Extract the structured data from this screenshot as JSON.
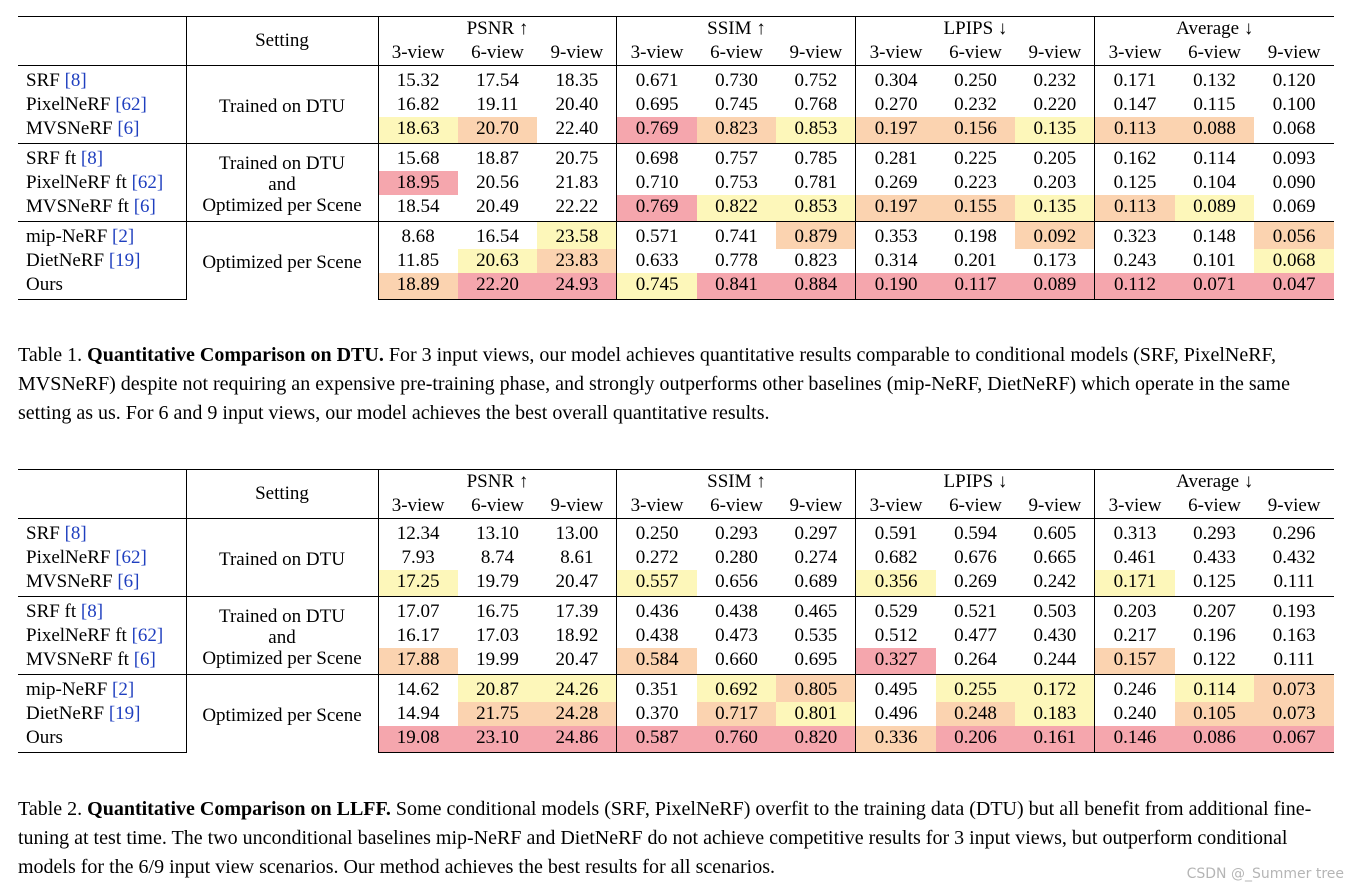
{
  "headers": {
    "setting": "Setting",
    "groups": [
      "PSNR ↑",
      "SSIM ↑",
      "LPIPS ↓",
      "Average ↓"
    ],
    "views": [
      "3-view",
      "6-view",
      "9-view"
    ]
  },
  "tables": [
    {
      "groups": [
        {
          "setting": [
            "Trained on DTU"
          ],
          "rows": [
            {
              "name": "SRF",
              "ref": "[8]",
              "bold": false,
              "cells": [
                "15.32",
                "17.54",
                "18.35",
                "0.671",
                "0.730",
                "0.752",
                "0.304",
                "0.250",
                "0.232",
                "0.171",
                "0.132",
                "0.120"
              ],
              "shade": [
                "",
                "",
                "",
                "",
                "",
                "",
                "",
                "",
                "",
                "",
                "",
                ""
              ]
            },
            {
              "name": "PixelNeRF",
              "ref": "[62]",
              "bold": false,
              "cells": [
                "16.82",
                "19.11",
                "20.40",
                "0.695",
                "0.745",
                "0.768",
                "0.270",
                "0.232",
                "0.220",
                "0.147",
                "0.115",
                "0.100"
              ],
              "shade": [
                "",
                "",
                "",
                "",
                "",
                "",
                "",
                "",
                "",
                "",
                "",
                ""
              ]
            },
            {
              "name": "MVSNeRF",
              "ref": "[6]",
              "bold": false,
              "cells": [
                "18.63",
                "20.70",
                "22.40",
                "0.769",
                "0.823",
                "0.853",
                "0.197",
                "0.156",
                "0.135",
                "0.113",
                "0.088",
                "0.068"
              ],
              "shade": [
                "c3",
                "c2",
                "",
                "c1",
                "c2",
                "c3",
                "c2",
                "c2",
                "c3",
                "c2",
                "c2",
                ""
              ]
            }
          ]
        },
        {
          "setting": [
            "Trained on DTU",
            "and",
            "Optimized per Scene"
          ],
          "rows": [
            {
              "name": "SRF ft",
              "ref": "[8]",
              "bold": false,
              "cells": [
                "15.68",
                "18.87",
                "20.75",
                "0.698",
                "0.757",
                "0.785",
                "0.281",
                "0.225",
                "0.205",
                "0.162",
                "0.114",
                "0.093"
              ],
              "shade": [
                "",
                "",
                "",
                "",
                "",
                "",
                "",
                "",
                "",
                "",
                "",
                ""
              ]
            },
            {
              "name": "PixelNeRF ft",
              "ref": "[62]",
              "bold": false,
              "cells": [
                "18.95",
                "20.56",
                "21.83",
                "0.710",
                "0.753",
                "0.781",
                "0.269",
                "0.223",
                "0.203",
                "0.125",
                "0.104",
                "0.090"
              ],
              "shade": [
                "c1",
                "",
                "",
                "",
                "",
                "",
                "",
                "",
                "",
                "",
                "",
                ""
              ]
            },
            {
              "name": "MVSNeRF ft",
              "ref": "[6]",
              "bold": false,
              "cells": [
                "18.54",
                "20.49",
                "22.22",
                "0.769",
                "0.822",
                "0.853",
                "0.197",
                "0.155",
                "0.135",
                "0.113",
                "0.089",
                "0.069"
              ],
              "shade": [
                "",
                "",
                "",
                "c1",
                "c3",
                "c3",
                "c2",
                "c2",
                "c3",
                "c2",
                "c3",
                ""
              ]
            }
          ]
        },
        {
          "setting": [
            "Optimized per Scene"
          ],
          "rows": [
            {
              "name": "mip-NeRF",
              "ref": "[2]",
              "bold": false,
              "cells": [
                "8.68",
                "16.54",
                "23.58",
                "0.571",
                "0.741",
                "0.879",
                "0.353",
                "0.198",
                "0.092",
                "0.323",
                "0.148",
                "0.056"
              ],
              "shade": [
                "",
                "",
                "c3",
                "",
                "",
                "c2",
                "",
                "",
                "c2",
                "",
                "",
                "c2"
              ]
            },
            {
              "name": "DietNeRF",
              "ref": "[19]",
              "bold": false,
              "cells": [
                "11.85",
                "20.63",
                "23.83",
                "0.633",
                "0.778",
                "0.823",
                "0.314",
                "0.201",
                "0.173",
                "0.243",
                "0.101",
                "0.068"
              ],
              "shade": [
                "",
                "c3",
                "c2",
                "",
                "",
                "",
                "",
                "",
                "",
                "",
                "",
                "c3"
              ]
            },
            {
              "name": "Ours",
              "ref": "",
              "bold": true,
              "cells": [
                "18.89",
                "22.20",
                "24.93",
                "0.745",
                "0.841",
                "0.884",
                "0.190",
                "0.117",
                "0.089",
                "0.112",
                "0.071",
                "0.047"
              ],
              "shade": [
                "c2",
                "c1",
                "c1",
                "c3",
                "c1",
                "c1",
                "c1",
                "c1",
                "c1",
                "c1",
                "c1",
                "c1"
              ]
            }
          ]
        }
      ],
      "caption": {
        "label": "Table 1.",
        "title": "Quantitative Comparison on DTU.",
        "text": "For 3 input views, our model achieves quantitative results comparable to conditional models (SRF, PixelNeRF, MVSNeRF) despite not requiring an expensive pre-training phase, and strongly outperforms other baselines (mip-NeRF, DietNeRF) which operate in the same setting as us. For 6 and 9 input views, our model achieves the best overall quantitative results."
      }
    },
    {
      "groups": [
        {
          "setting": [
            "Trained on DTU"
          ],
          "rows": [
            {
              "name": "SRF",
              "ref": "[8]",
              "bold": false,
              "cells": [
                "12.34",
                "13.10",
                "13.00",
                "0.250",
                "0.293",
                "0.297",
                "0.591",
                "0.594",
                "0.605",
                "0.313",
                "0.293",
                "0.296"
              ],
              "shade": [
                "",
                "",
                "",
                "",
                "",
                "",
                "",
                "",
                "",
                "",
                "",
                ""
              ]
            },
            {
              "name": "PixelNeRF",
              "ref": "[62]",
              "bold": false,
              "cells": [
                "7.93",
                "8.74",
                "8.61",
                "0.272",
                "0.280",
                "0.274",
                "0.682",
                "0.676",
                "0.665",
                "0.461",
                "0.433",
                "0.432"
              ],
              "shade": [
                "",
                "",
                "",
                "",
                "",
                "",
                "",
                "",
                "",
                "",
                "",
                ""
              ]
            },
            {
              "name": "MVSNeRF",
              "ref": "[6]",
              "bold": false,
              "cells": [
                "17.25",
                "19.79",
                "20.47",
                "0.557",
                "0.656",
                "0.689",
                "0.356",
                "0.269",
                "0.242",
                "0.171",
                "0.125",
                "0.111"
              ],
              "shade": [
                "c3",
                "",
                "",
                "c3",
                "",
                "",
                "c3",
                "",
                "",
                "c3",
                "",
                ""
              ]
            }
          ]
        },
        {
          "setting": [
            "Trained on DTU",
            "and",
            "Optimized per Scene"
          ],
          "rows": [
            {
              "name": "SRF ft",
              "ref": "[8]",
              "bold": false,
              "cells": [
                "17.07",
                "16.75",
                "17.39",
                "0.436",
                "0.438",
                "0.465",
                "0.529",
                "0.521",
                "0.503",
                "0.203",
                "0.207",
                "0.193"
              ],
              "shade": [
                "",
                "",
                "",
                "",
                "",
                "",
                "",
                "",
                "",
                "",
                "",
                ""
              ]
            },
            {
              "name": "PixelNeRF ft",
              "ref": "[62]",
              "bold": false,
              "cells": [
                "16.17",
                "17.03",
                "18.92",
                "0.438",
                "0.473",
                "0.535",
                "0.512",
                "0.477",
                "0.430",
                "0.217",
                "0.196",
                "0.163"
              ],
              "shade": [
                "",
                "",
                "",
                "",
                "",
                "",
                "",
                "",
                "",
                "",
                "",
                ""
              ]
            },
            {
              "name": "MVSNeRF ft",
              "ref": "[6]",
              "bold": false,
              "cells": [
                "17.88",
                "19.99",
                "20.47",
                "0.584",
                "0.660",
                "0.695",
                "0.327",
                "0.264",
                "0.244",
                "0.157",
                "0.122",
                "0.111"
              ],
              "shade": [
                "c2",
                "",
                "",
                "c2",
                "",
                "",
                "c1",
                "",
                "",
                "c2",
                "",
                ""
              ]
            }
          ]
        },
        {
          "setting": [
            "Optimized per Scene"
          ],
          "rows": [
            {
              "name": "mip-NeRF",
              "ref": "[2]",
              "bold": false,
              "cells": [
                "14.62",
                "20.87",
                "24.26",
                "0.351",
                "0.692",
                "0.805",
                "0.495",
                "0.255",
                "0.172",
                "0.246",
                "0.114",
                "0.073"
              ],
              "shade": [
                "",
                "c3",
                "c3",
                "",
                "c3",
                "c2",
                "",
                "c3",
                "c3",
                "",
                "c3",
                "c2"
              ]
            },
            {
              "name": "DietNeRF",
              "ref": "[19]",
              "bold": false,
              "cells": [
                "14.94",
                "21.75",
                "24.28",
                "0.370",
                "0.717",
                "0.801",
                "0.496",
                "0.248",
                "0.183",
                "0.240",
                "0.105",
                "0.073"
              ],
              "shade": [
                "",
                "c2",
                "c2",
                "",
                "c2",
                "c3",
                "",
                "c2",
                "c3",
                "",
                "c2",
                "c2"
              ]
            },
            {
              "name": "Ours",
              "ref": "",
              "bold": true,
              "cells": [
                "19.08",
                "23.10",
                "24.86",
                "0.587",
                "0.760",
                "0.820",
                "0.336",
                "0.206",
                "0.161",
                "0.146",
                "0.086",
                "0.067"
              ],
              "shade": [
                "c1",
                "c1",
                "c1",
                "c1",
                "c1",
                "c1",
                "c2",
                "c1",
                "c1",
                "c1",
                "c1",
                "c1"
              ]
            }
          ]
        }
      ],
      "caption": {
        "label": "Table 2.",
        "title": "Quantitative Comparison on LLFF.",
        "text": "Some conditional models (SRF, PixelNeRF) overfit to the training data (DTU) but all benefit from additional fine-tuning at test time. The two unconditional baselines mip-NeRF and DietNeRF do not achieve competitive results for 3 input views, but outperform conditional models for the 6/9 input view scenarios. Our method achieves the best results for all scenarios."
      }
    }
  ],
  "watermark": "CSDN @_Summer tree",
  "colors": {
    "best": "#f5a6ad",
    "second": "#fbd3b0",
    "third": "#fdf7ba"
  }
}
